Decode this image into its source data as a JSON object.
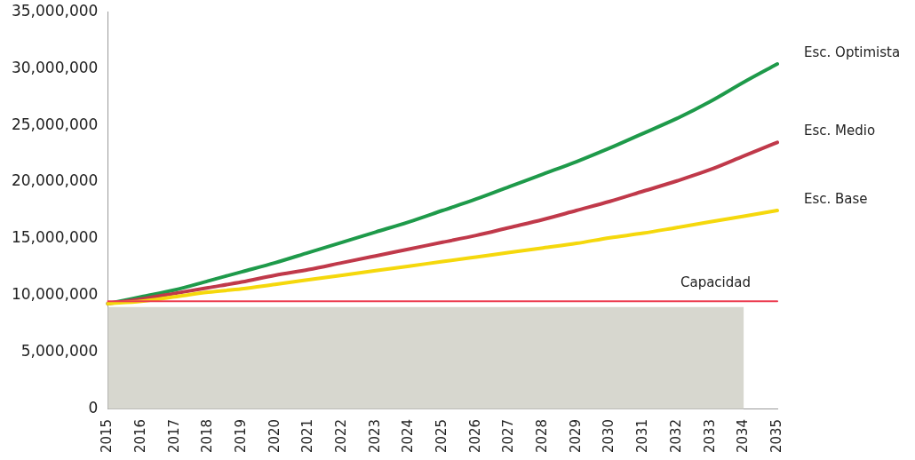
{
  "chart_data": {
    "type": "line",
    "categories": [
      "2015",
      "2016",
      "2017",
      "2018",
      "2019",
      "2020",
      "2021",
      "2022",
      "2023",
      "2024",
      "2025",
      "2026",
      "2027",
      "2028",
      "2029",
      "2030",
      "2031",
      "2032",
      "2033",
      "2034",
      "2035"
    ],
    "series": [
      {
        "type": "area",
        "color": "#d7d7cf",
        "values": [
          9000000,
          9000000,
          9000000,
          9000000,
          9000000,
          9000000,
          9000000,
          9000000,
          9000000,
          9000000,
          9000000,
          9000000,
          9000000,
          9000000,
          9000000,
          9000000,
          9000000,
          9000000,
          9000000,
          9000000,
          null
        ]
      },
      {
        "name": "Capacidad",
        "color": "#ec3d50",
        "values": [
          9500000,
          9500000,
          9500000,
          9500000,
          9500000,
          9500000,
          9500000,
          9500000,
          9500000,
          9500000,
          9500000,
          9500000,
          9500000,
          9500000,
          9500000,
          9500000,
          9500000,
          9500000,
          9500000,
          9500000,
          9500000
        ]
      },
      {
        "name": "Esc. Base",
        "color": "#f5d80c",
        "values": [
          9300000,
          9500000,
          9900000,
          10300000,
          10600000,
          11000000,
          11400000,
          11800000,
          12200000,
          12600000,
          13000000,
          13400000,
          13800000,
          14200000,
          14600000,
          15100000,
          15500000,
          16000000,
          16500000,
          17000000,
          17500000
        ]
      },
      {
        "name": "Esc. Medio",
        "color": "#c0394a",
        "values": [
          9300000,
          9700000,
          10200000,
          10700000,
          11200000,
          11800000,
          12300000,
          12900000,
          13500000,
          14100000,
          14700000,
          15300000,
          16000000,
          16700000,
          17500000,
          18300000,
          19200000,
          20100000,
          21100000,
          22300000,
          23500000
        ]
      },
      {
        "name": "Esc. Optimista",
        "color": "#1e9a4a",
        "values": [
          9300000,
          9900000,
          10500000,
          11300000,
          12100000,
          12900000,
          13800000,
          14700000,
          15600000,
          16500000,
          17500000,
          18500000,
          19600000,
          20700000,
          21800000,
          23000000,
          24300000,
          25600000,
          27100000,
          28800000,
          30400000
        ]
      }
    ],
    "ylim": [
      0,
      35000000
    ],
    "yticks": [
      {
        "value": 0,
        "label": "0"
      },
      {
        "value": 5000000,
        "label": "5,000,000"
      },
      {
        "value": 10000000,
        "label": "10,000,000"
      },
      {
        "value": 15000000,
        "label": "15,000,000"
      },
      {
        "value": 20000000,
        "label": "20,000,000"
      },
      {
        "value": 25000000,
        "label": "25,000,000"
      },
      {
        "value": 30000000,
        "label": "30,000,000"
      },
      {
        "value": 35000000,
        "label": "35,000,000"
      }
    ]
  }
}
